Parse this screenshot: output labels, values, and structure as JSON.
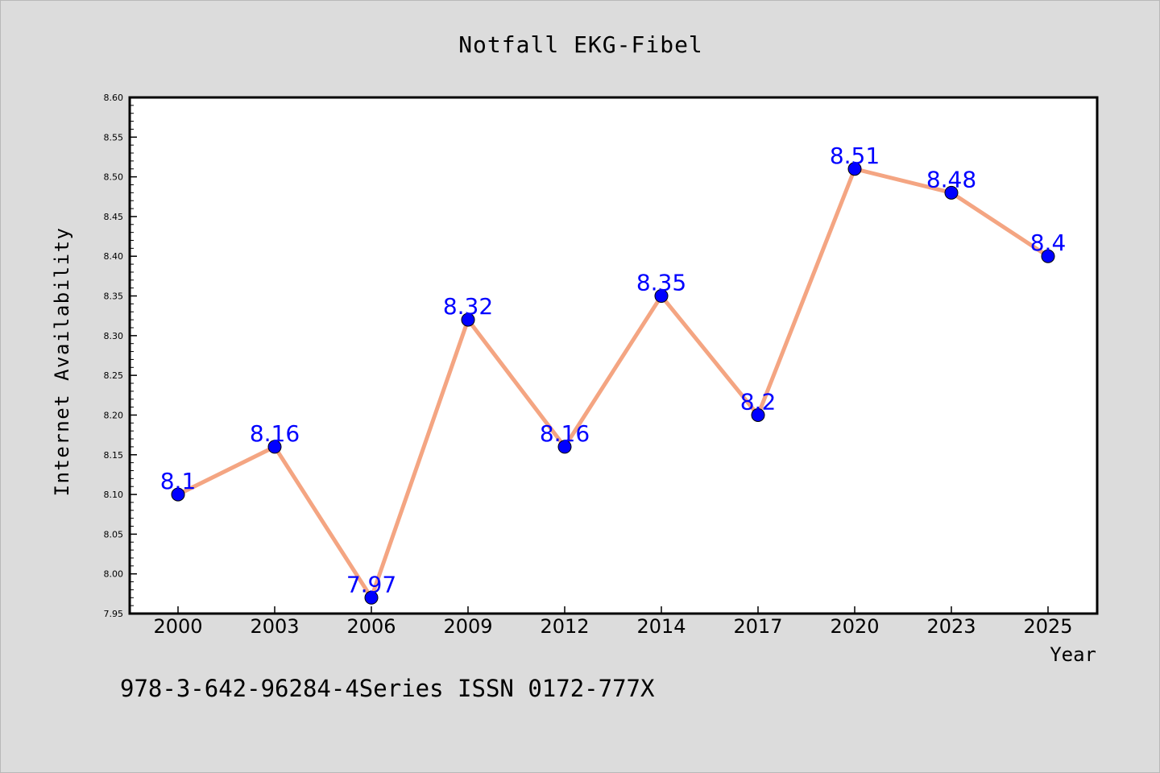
{
  "chart_data": {
    "type": "line",
    "title": "Notfall EKG-Fibel",
    "xlabel": "Year",
    "ylabel": "Internet Availability",
    "categories": [
      "2000",
      "2003",
      "2006",
      "2009",
      "2012",
      "2014",
      "2017",
      "2020",
      "2023",
      "2025"
    ],
    "series": [
      {
        "values": [
          8.1,
          8.16,
          7.97,
          8.32,
          8.16,
          8.35,
          8.2,
          8.51,
          8.48,
          8.4
        ],
        "data_labels": [
          "8.1",
          "8.16",
          "7.97",
          "8.32",
          "8.16",
          "8.35",
          "8.2",
          "8.51",
          "8.48",
          "8.4"
        ]
      }
    ],
    "ylim": [
      7.95,
      8.6
    ],
    "y_ticks": [
      "7.95",
      "8.00",
      "8.05",
      "8.10",
      "8.15",
      "8.20",
      "8.25",
      "8.30",
      "8.35",
      "8.40",
      "8.45",
      "8.50",
      "8.55",
      "8.60"
    ],
    "grid": false,
    "legend": "none",
    "colors": {
      "line": "#f4a582",
      "marker": "#0000ff",
      "data_label": "#0000ff",
      "background": "#dcdcdc",
      "plot_area": "#ffffff"
    }
  },
  "footer": {
    "text": "978-3-642-96284-4Series ISSN 0172-777X"
  }
}
